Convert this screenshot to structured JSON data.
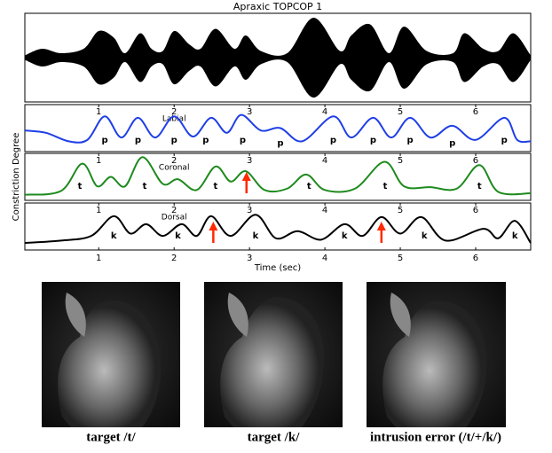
{
  "chart_data": [
    {
      "type": "envelope",
      "title": "Apraxic TOPCOP 1",
      "color": "#000000",
      "xlim": [
        0.02,
        6.73
      ],
      "ylim": [
        -1,
        1
      ],
      "x": [
        0.02,
        0.25,
        0.5,
        0.8,
        1.0,
        1.2,
        1.35,
        1.55,
        1.7,
        1.85,
        2.0,
        2.2,
        2.35,
        2.55,
        2.8,
        2.95,
        3.15,
        3.5,
        3.85,
        4.2,
        4.35,
        4.6,
        4.85,
        5.05,
        5.35,
        5.7,
        5.85,
        6.1,
        6.3,
        6.5,
        6.73
      ],
      "values": [
        0.05,
        0.2,
        0.1,
        0.2,
        0.6,
        0.45,
        0.1,
        0.55,
        0.2,
        0.15,
        0.6,
        0.3,
        0.2,
        0.65,
        0.2,
        0.5,
        0.15,
        0.1,
        0.9,
        0.15,
        0.5,
        0.75,
        0.1,
        0.7,
        0.15,
        0.1,
        0.55,
        0.2,
        0.15,
        0.55,
        0.05
      ]
    },
    {
      "type": "line",
      "subtitle": "Labial",
      "color": "#1f3fe6",
      "xlim": [
        0.02,
        6.73
      ],
      "ylim": [
        0,
        1
      ],
      "xticks": [
        1,
        2,
        3,
        4,
        5,
        6
      ],
      "x": [
        0.02,
        0.3,
        0.6,
        0.85,
        1.08,
        1.3,
        1.52,
        1.75,
        2.0,
        2.25,
        2.49,
        2.7,
        2.89,
        3.15,
        3.41,
        3.7,
        4.11,
        4.35,
        4.64,
        4.88,
        5.13,
        5.4,
        5.69,
        6.0,
        6.38,
        6.55,
        6.73
      ],
      "values": [
        0.45,
        0.4,
        0.22,
        0.25,
        0.75,
        0.3,
        0.72,
        0.3,
        0.75,
        0.32,
        0.72,
        0.4,
        0.78,
        0.45,
        0.5,
        0.22,
        0.75,
        0.3,
        0.72,
        0.3,
        0.72,
        0.3,
        0.55,
        0.25,
        0.72,
        0.25,
        0.22
      ],
      "annotations": [
        {
          "text": "p",
          "x": 1.08,
          "y": 0.25
        },
        {
          "text": "p",
          "x": 1.52,
          "y": 0.25
        },
        {
          "text": "p",
          "x": 2.0,
          "y": 0.25
        },
        {
          "text": "p",
          "x": 2.42,
          "y": 0.25
        },
        {
          "text": "p",
          "x": 2.91,
          "y": 0.25
        },
        {
          "text": "p",
          "x": 3.41,
          "y": 0.18
        },
        {
          "text": "p",
          "x": 4.11,
          "y": 0.25
        },
        {
          "text": "p",
          "x": 4.64,
          "y": 0.25
        },
        {
          "text": "p",
          "x": 5.13,
          "y": 0.25
        },
        {
          "text": "p",
          "x": 5.69,
          "y": 0.18
        },
        {
          "text": "p",
          "x": 6.38,
          "y": 0.25
        }
      ]
    },
    {
      "type": "line",
      "subtitle": "Coronal",
      "ylabel": "Constriction Degree",
      "color": "#1e8a1e",
      "xlim": [
        0.02,
        6.73
      ],
      "ylim": [
        0,
        1
      ],
      "xticks": [
        1,
        2,
        3,
        4,
        5,
        6
      ],
      "x": [
        0.02,
        0.5,
        0.78,
        0.98,
        1.16,
        1.35,
        1.58,
        1.85,
        2.05,
        2.3,
        2.55,
        2.75,
        2.95,
        3.2,
        3.5,
        3.75,
        4.0,
        4.4,
        4.79,
        5.05,
        5.4,
        5.75,
        6.05,
        6.3,
        6.73
      ],
      "values": [
        0.12,
        0.2,
        0.78,
        0.3,
        0.5,
        0.3,
        0.92,
        0.35,
        0.45,
        0.22,
        0.72,
        0.4,
        0.62,
        0.22,
        0.25,
        0.55,
        0.22,
        0.25,
        0.82,
        0.3,
        0.28,
        0.25,
        0.75,
        0.18,
        0.15
      ],
      "annotations": [
        {
          "text": "t",
          "x": 0.75,
          "y": 0.3
        },
        {
          "text": "t",
          "x": 1.61,
          "y": 0.3
        },
        {
          "text": "t",
          "x": 2.55,
          "y": 0.3
        },
        {
          "text": "t",
          "x": 3.79,
          "y": 0.3
        },
        {
          "text": "t",
          "x": 4.8,
          "y": 0.3
        },
        {
          "text": "t",
          "x": 6.05,
          "y": 0.3
        }
      ],
      "arrows": [
        {
          "x": 2.96,
          "y": 0.15
        }
      ]
    },
    {
      "type": "line",
      "subtitle": "Dorsal",
      "xlabel": "Time (sec)",
      "color": "#000000",
      "xlim": [
        0.02,
        6.73
      ],
      "ylim": [
        0,
        1
      ],
      "xticks": [
        1,
        2,
        3,
        4,
        5,
        6
      ],
      "x": [
        0.02,
        0.5,
        0.9,
        1.2,
        1.42,
        1.63,
        1.85,
        2.1,
        2.3,
        2.49,
        2.75,
        3.08,
        3.35,
        3.64,
        3.95,
        4.26,
        4.5,
        4.75,
        5.0,
        5.28,
        5.6,
        6.1,
        6.3,
        6.52,
        6.73
      ],
      "values": [
        0.15,
        0.2,
        0.3,
        0.72,
        0.35,
        0.55,
        0.3,
        0.55,
        0.3,
        0.72,
        0.3,
        0.75,
        0.25,
        0.4,
        0.22,
        0.55,
        0.3,
        0.7,
        0.35,
        0.7,
        0.2,
        0.45,
        0.25,
        0.62,
        0.15
      ],
      "annotations": [
        {
          "text": "k",
          "x": 1.2,
          "y": 0.3
        },
        {
          "text": "k",
          "x": 2.05,
          "y": 0.3
        },
        {
          "text": "k",
          "x": 3.08,
          "y": 0.3
        },
        {
          "text": "k",
          "x": 4.26,
          "y": 0.3
        },
        {
          "text": "k",
          "x": 5.32,
          "y": 0.3
        },
        {
          "text": "k",
          "x": 6.52,
          "y": 0.3
        }
      ],
      "arrows": [
        {
          "x": 2.52,
          "y": 0.15
        },
        {
          "x": 4.75,
          "y": 0.15
        }
      ]
    }
  ],
  "images": [
    {
      "caption": "target /t/"
    },
    {
      "caption": "target /k/"
    },
    {
      "caption": "intrusion error (/t/+/k/)"
    }
  ]
}
